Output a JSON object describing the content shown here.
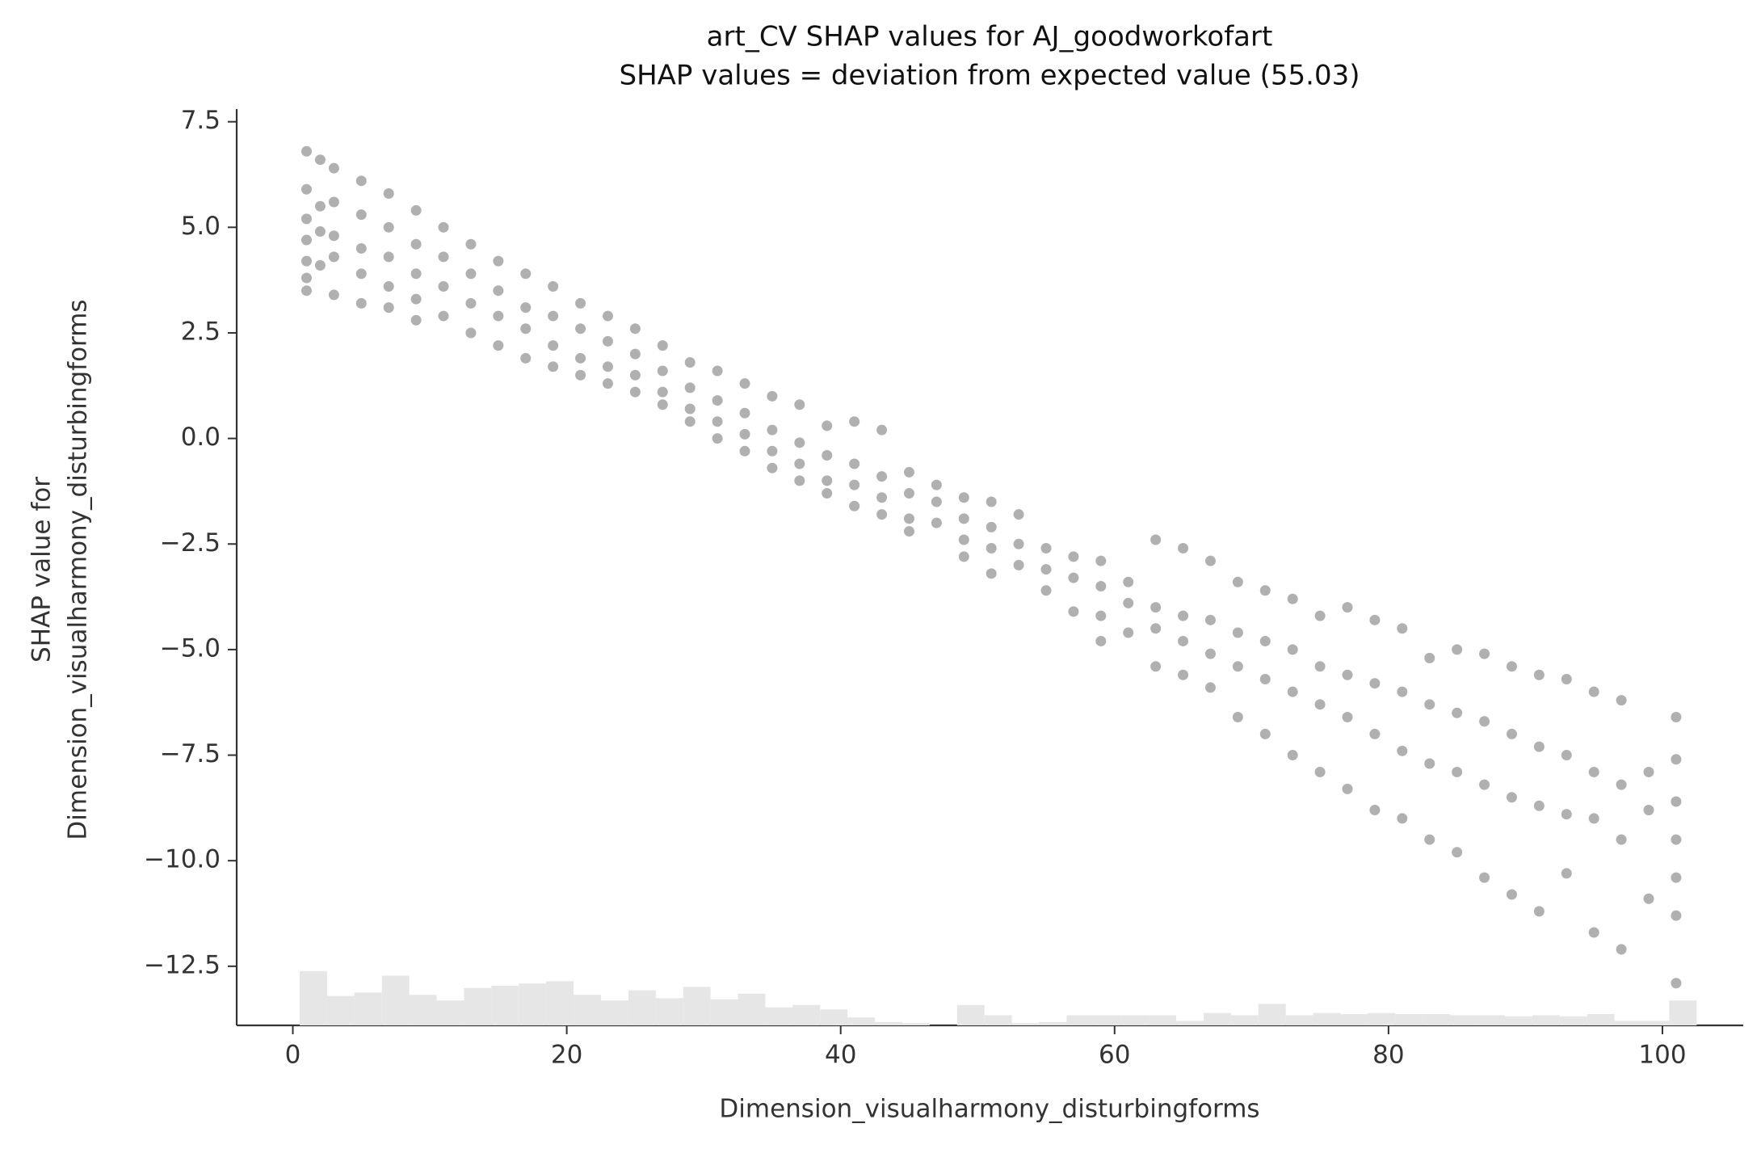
{
  "chart_data": {
    "type": "scatter",
    "title": "art_CV SHAP values for AJ_goodworkofart",
    "subtitle": "SHAP values = deviation from expected value (55.03)",
    "xlabel": "Dimension_visualharmony_disturbingforms",
    "ylabel": [
      "SHAP value for",
      "Dimension_visualharmony_disturbingforms"
    ],
    "color": "#707070",
    "xlim": [
      -4.1,
      105.9
    ],
    "ylim": [
      -13.9,
      7.8
    ],
    "xticks": [
      0,
      20,
      40,
      60,
      80,
      100
    ],
    "yticks": [
      7.5,
      {
        "value": 5,
        "label": "5.0"
      },
      2.5,
      {
        "value": 0,
        "label": "0.0"
      },
      {
        "value": -2.5,
        "label": "−2.5"
      },
      {
        "value": -5,
        "label": "−5.0"
      },
      {
        "value": -7.5,
        "label": "−7.5"
      },
      {
        "value": -10,
        "label": "−10.0"
      },
      {
        "value": -12.5,
        "label": "−12.5"
      }
    ],
    "x": [
      1,
      1,
      1,
      1,
      1,
      1,
      1,
      2,
      2,
      2,
      2,
      3,
      3,
      3,
      3,
      3,
      5,
      5,
      5,
      5,
      5,
      7,
      7,
      7,
      7,
      7,
      9,
      9,
      9,
      9,
      9,
      11,
      11,
      11,
      11,
      13,
      13,
      13,
      13,
      15,
      15,
      15,
      15,
      17,
      17,
      17,
      17,
      19,
      19,
      19,
      19,
      21,
      21,
      21,
      21,
      23,
      23,
      23,
      23,
      25,
      25,
      25,
      25,
      27,
      27,
      27,
      27,
      29,
      29,
      29,
      29,
      31,
      31,
      31,
      31,
      33,
      33,
      33,
      33,
      35,
      35,
      35,
      35,
      37,
      37,
      37,
      37,
      39,
      39,
      39,
      39,
      41,
      41,
      41,
      41,
      43,
      43,
      43,
      43,
      45,
      45,
      45,
      45,
      47,
      47,
      47,
      49,
      49,
      49,
      49,
      51,
      51,
      51,
      51,
      53,
      53,
      53,
      55,
      55,
      55,
      57,
      57,
      57,
      59,
      59,
      59,
      59,
      61,
      61,
      61,
      63,
      63,
      63,
      63,
      65,
      65,
      65,
      65,
      67,
      67,
      67,
      67,
      69,
      69,
      69,
      69,
      71,
      71,
      71,
      71,
      73,
      73,
      73,
      73,
      75,
      75,
      75,
      75,
      77,
      77,
      77,
      77,
      79,
      79,
      79,
      79,
      81,
      81,
      81,
      81,
      83,
      83,
      83,
      83,
      85,
      85,
      85,
      85,
      87,
      87,
      87,
      87,
      89,
      89,
      89,
      89,
      91,
      91,
      91,
      91,
      93,
      93,
      93,
      93,
      95,
      95,
      95,
      95,
      97,
      97,
      97,
      97,
      99,
      99,
      99,
      101,
      101,
      101,
      101,
      101,
      101,
      101
    ],
    "values": [
      6.8,
      5.9,
      5.2,
      4.7,
      4.2,
      3.8,
      3.5,
      6.6,
      5.5,
      4.9,
      4.1,
      6.4,
      5.6,
      4.8,
      4.3,
      3.4,
      6.1,
      5.3,
      4.5,
      3.9,
      3.2,
      5.8,
      5.0,
      4.3,
      3.6,
      3.1,
      5.4,
      4.6,
      3.9,
      3.3,
      2.8,
      5.0,
      4.3,
      3.6,
      2.9,
      4.6,
      3.9,
      3.2,
      2.5,
      4.2,
      3.5,
      2.9,
      2.2,
      3.9,
      3.1,
      2.6,
      1.9,
      3.6,
      2.9,
      2.2,
      1.7,
      3.2,
      2.6,
      1.9,
      1.5,
      2.9,
      2.3,
      1.7,
      1.3,
      2.6,
      2.0,
      1.5,
      1.1,
      2.2,
      1.6,
      1.1,
      0.8,
      1.8,
      1.2,
      0.7,
      0.4,
      1.6,
      0.9,
      0.4,
      0.0,
      1.3,
      0.6,
      0.1,
      -0.3,
      1.0,
      0.2,
      -0.3,
      -0.7,
      0.8,
      -0.1,
      -0.6,
      -1.0,
      0.3,
      -0.4,
      -1.0,
      -1.3,
      0.4,
      -0.6,
      -1.1,
      -1.6,
      0.2,
      -0.9,
      -1.4,
      -1.8,
      -0.8,
      -1.3,
      -1.9,
      -2.2,
      -1.1,
      -1.5,
      -2.0,
      -1.4,
      -1.9,
      -2.4,
      -2.8,
      -1.5,
      -2.1,
      -2.6,
      -3.2,
      -1.8,
      -2.5,
      -3.0,
      -2.6,
      -3.1,
      -3.6,
      -2.8,
      -3.3,
      -4.1,
      -2.9,
      -3.5,
      -4.2,
      -4.8,
      -3.4,
      -3.9,
      -4.6,
      -2.4,
      -4.0,
      -4.5,
      -5.4,
      -2.6,
      -4.2,
      -4.8,
      -5.6,
      -2.9,
      -4.3,
      -5.1,
      -5.9,
      -3.4,
      -4.6,
      -5.4,
      -6.6,
      -3.6,
      -4.8,
      -5.7,
      -7.0,
      -3.8,
      -5.0,
      -6.0,
      -7.5,
      -4.2,
      -5.4,
      -6.3,
      -7.9,
      -4.0,
      -5.6,
      -6.6,
      -8.3,
      -4.3,
      -5.8,
      -7.0,
      -8.8,
      -4.5,
      -6.0,
      -7.4,
      -9.0,
      -5.2,
      -6.3,
      -7.7,
      -9.5,
      -5.0,
      -6.5,
      -7.9,
      -9.8,
      -5.1,
      -6.7,
      -8.2,
      -10.4,
      -5.4,
      -7.0,
      -8.5,
      -10.8,
      -5.6,
      -7.3,
      -8.7,
      -11.2,
      -5.7,
      -7.5,
      -8.9,
      -10.3,
      -6.0,
      -7.9,
      -9.0,
      -11.7,
      -6.2,
      -8.2,
      -9.5,
      -12.1,
      -7.9,
      -8.8,
      -10.9,
      -6.6,
      -7.6,
      -8.6,
      -9.5,
      -10.4,
      -11.3,
      -12.9
    ],
    "hist": {
      "color": "#e6e6e6",
      "bins": [
        0.5,
        2.5,
        4.5,
        6.5,
        8.5,
        10.5,
        12.5,
        14.5,
        16.5,
        18.5,
        20.5,
        22.5,
        24.5,
        26.5,
        28.5,
        30.5,
        32.5,
        34.5,
        36.5,
        38.5,
        40.5,
        42.5,
        44.5,
        46.5,
        48.5,
        50.5,
        52.5,
        54.5,
        56.5,
        58.5,
        60.5,
        62.5,
        64.5,
        66.5,
        68.5,
        70.5,
        72.5,
        74.5,
        76.5,
        78.5,
        80.5,
        82.5,
        84.5,
        86.5,
        88.5,
        90.5,
        92.5,
        94.5,
        96.5,
        98.5,
        100.5,
        102.5
      ],
      "counts": [
        48,
        26,
        29,
        44,
        27,
        22,
        33,
        35,
        37,
        39,
        27,
        22,
        31,
        24,
        34,
        23,
        28,
        16,
        18,
        14,
        7,
        3,
        2,
        0,
        18,
        9,
        2,
        3,
        9,
        9,
        9,
        9,
        4,
        11,
        9,
        19,
        9,
        11,
        10,
        11,
        10,
        10,
        9,
        9,
        8,
        9,
        8,
        10,
        4,
        4,
        22
      ]
    }
  }
}
